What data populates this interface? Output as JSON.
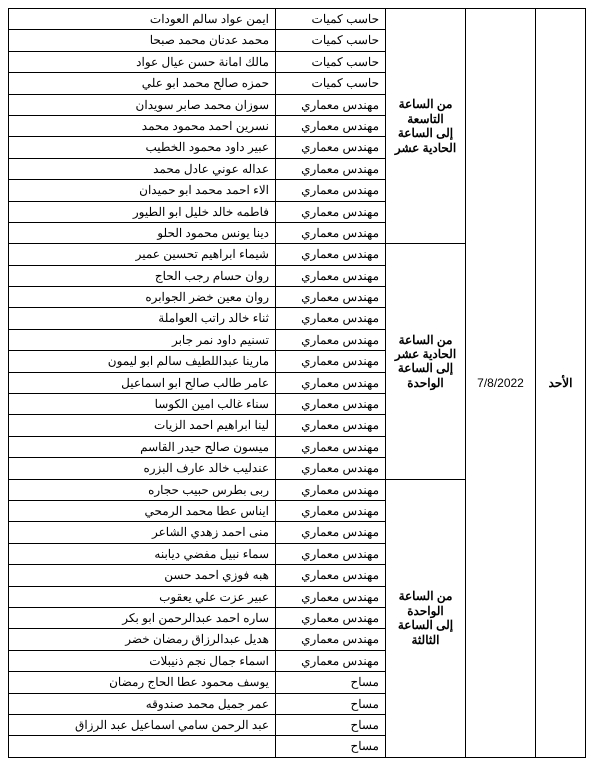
{
  "day": "الأحد",
  "date": "7/8/2022",
  "groups": [
    {
      "time_lines": [
        "من الساعة",
        "التاسعة",
        "إلى الساعة",
        "الحادية عشر"
      ],
      "rows": [
        {
          "name": "ايمن عواد سالم العودات",
          "role": "حاسب كميات"
        },
        {
          "name": "محمد عدنان محمد صبحا",
          "role": "حاسب كميات"
        },
        {
          "name": "مالك امانة حسن عيال عواد",
          "role": "حاسب كميات"
        },
        {
          "name": "حمزه صالح محمد ابو علي",
          "role": "حاسب كميات"
        },
        {
          "name": "سوزان محمد صابر سويدان",
          "role": "مهندس معماري"
        },
        {
          "name": "نسرين احمد محمود محمد",
          "role": "مهندس معماري"
        },
        {
          "name": "عبير داود محمود الخطيب",
          "role": "مهندس معماري"
        },
        {
          "name": "عداله عوني عادل محمد",
          "role": "مهندس معماري"
        },
        {
          "name": "الاء احمد محمد ابو حميدان",
          "role": "مهندس معماري"
        },
        {
          "name": "فاطمه خالد خليل ابو الطيور",
          "role": "مهندس معماري"
        },
        {
          "name": "دينا يونس محمود الحلو",
          "role": "مهندس معماري"
        }
      ]
    },
    {
      "time_lines": [
        "من الساعة",
        "الحادية عشر",
        "إلى الساعة",
        "الواحدة"
      ],
      "rows": [
        {
          "name": "شيماء ابراهيم تحسين عمير",
          "role": "مهندس معماري"
        },
        {
          "name": "روان حسام رجب الحاج",
          "role": "مهندس معماري"
        },
        {
          "name": "روان معين خضر الجوابره",
          "role": "مهندس معماري"
        },
        {
          "name": "ثناء خالد راتب العواملة",
          "role": "مهندس معماري"
        },
        {
          "name": "تسنيم داود نمر جابر",
          "role": "مهندس معماري"
        },
        {
          "name": "مارينا عبداللطيف سالم ابو ليمون",
          "role": "مهندس معماري"
        },
        {
          "name": "عامر طالب صالح ابو اسماعيل",
          "role": "مهندس معماري"
        },
        {
          "name": "سناء غالب امين الكوسا",
          "role": "مهندس معماري"
        },
        {
          "name": "لينا ابراهيم احمد الزيات",
          "role": "مهندس معماري"
        },
        {
          "name": "ميسون صالح حيدر القاسم",
          "role": "مهندس معماري"
        },
        {
          "name": "عندليب خالد عارف البزره",
          "role": "مهندس معماري"
        }
      ]
    },
    {
      "time_lines": [
        "من الساعة",
        "الواحدة",
        "إلى الساعة",
        "الثالثة"
      ],
      "rows": [
        {
          "name": "ربى بطرس حبيب حجاره",
          "role": "مهندس معماري"
        },
        {
          "name": "ايناس عطا محمد الرمحي",
          "role": "مهندس معماري"
        },
        {
          "name": "منى احمد زهدي الشاعر",
          "role": "مهندس معماري"
        },
        {
          "name": "سماء نبيل مفضي ديابنه",
          "role": "مهندس معماري"
        },
        {
          "name": "هبه فوزي احمد حسن",
          "role": "مهندس معماري"
        },
        {
          "name": "عبير عزت علي يعقوب",
          "role": "مهندس معماري"
        },
        {
          "name": "ساره احمد عبدالرحمن ابو بكر",
          "role": "مهندس معماري"
        },
        {
          "name": "هديل عبدالرزاق رمضان خضر",
          "role": "مهندس معماري"
        },
        {
          "name": "اسماء جمال نجم ذنيبلات",
          "role": "مهندس معماري"
        },
        {
          "name": "يوسف محمود عطا الحاج رمضان",
          "role": "مساح"
        },
        {
          "name": "عمر جميل محمد صندوقه",
          "role": "مساح"
        },
        {
          "name": "عبد الرحمن سامي اسماعيل عبد الرزاق",
          "role": "مساح"
        },
        {
          "name": "",
          "role": "مساح"
        }
      ]
    }
  ]
}
